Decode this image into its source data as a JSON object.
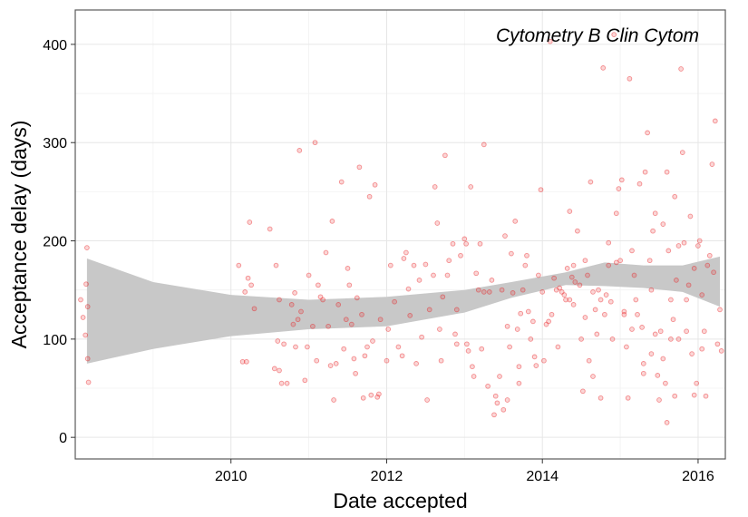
{
  "chart_data": {
    "type": "scatter",
    "annotation": "Cytometry B Clin Cytom",
    "xlabel": "Date accepted",
    "ylabel": "Acceptance delay (days)",
    "xlim": [
      2008.0,
      2016.35
    ],
    "ylim": [
      -22,
      435
    ],
    "x_ticks": [
      2010,
      2012,
      2014,
      2016
    ],
    "y_ticks": [
      0,
      100,
      200,
      300,
      400
    ],
    "grid": true,
    "point_color": "#e8191d",
    "band_color": "#c8c8c8",
    "points": [
      [
        2008.07,
        140
      ],
      [
        2008.1,
        122
      ],
      [
        2008.13,
        104
      ],
      [
        2008.14,
        156
      ],
      [
        2008.15,
        193
      ],
      [
        2008.16,
        133
      ],
      [
        2008.16,
        80
      ],
      [
        2008.17,
        56
      ],
      [
        2010.1,
        175
      ],
      [
        2010.15,
        77
      ],
      [
        2010.18,
        148
      ],
      [
        2010.2,
        77
      ],
      [
        2010.22,
        162
      ],
      [
        2010.24,
        219
      ],
      [
        2010.26,
        155
      ],
      [
        2010.3,
        131
      ],
      [
        2010.5,
        212
      ],
      [
        2010.56,
        70
      ],
      [
        2010.58,
        175
      ],
      [
        2010.6,
        98
      ],
      [
        2010.62,
        140
      ],
      [
        2010.62,
        68
      ],
      [
        2010.65,
        55
      ],
      [
        2010.68,
        95
      ],
      [
        2010.72,
        55
      ],
      [
        2010.78,
        135
      ],
      [
        2010.8,
        115
      ],
      [
        2010.82,
        147
      ],
      [
        2010.83,
        92
      ],
      [
        2010.86,
        120
      ],
      [
        2010.88,
        292
      ],
      [
        2010.9,
        128
      ],
      [
        2010.95,
        58
      ],
      [
        2010.98,
        92
      ],
      [
        2011.0,
        165
      ],
      [
        2011.05,
        113
      ],
      [
        2011.08,
        300
      ],
      [
        2011.1,
        78
      ],
      [
        2011.12,
        155
      ],
      [
        2011.15,
        143
      ],
      [
        2011.18,
        140
      ],
      [
        2011.22,
        188
      ],
      [
        2011.25,
        113
      ],
      [
        2011.28,
        73
      ],
      [
        2011.3,
        220
      ],
      [
        2011.32,
        38
      ],
      [
        2011.35,
        75
      ],
      [
        2011.38,
        135
      ],
      [
        2011.42,
        260
      ],
      [
        2011.45,
        90
      ],
      [
        2011.48,
        120
      ],
      [
        2011.5,
        172
      ],
      [
        2011.52,
        155
      ],
      [
        2011.55,
        115
      ],
      [
        2011.58,
        80
      ],
      [
        2011.6,
        65
      ],
      [
        2011.62,
        142
      ],
      [
        2011.65,
        275
      ],
      [
        2011.68,
        125
      ],
      [
        2011.7,
        40
      ],
      [
        2011.72,
        83
      ],
      [
        2011.75,
        92
      ],
      [
        2011.78,
        245
      ],
      [
        2011.8,
        43
      ],
      [
        2011.82,
        98
      ],
      [
        2011.85,
        257
      ],
      [
        2011.88,
        41
      ],
      [
        2011.9,
        44
      ],
      [
        2011.92,
        120
      ],
      [
        2012.0,
        78
      ],
      [
        2012.02,
        110
      ],
      [
        2012.05,
        175
      ],
      [
        2012.1,
        138
      ],
      [
        2012.15,
        92
      ],
      [
        2012.2,
        83
      ],
      [
        2012.22,
        182
      ],
      [
        2012.25,
        188
      ],
      [
        2012.28,
        151
      ],
      [
        2012.3,
        124
      ],
      [
        2012.35,
        175
      ],
      [
        2012.38,
        75
      ],
      [
        2012.42,
        160
      ],
      [
        2012.45,
        102
      ],
      [
        2012.5,
        176
      ],
      [
        2012.52,
        38
      ],
      [
        2012.55,
        130
      ],
      [
        2012.6,
        165
      ],
      [
        2012.62,
        255
      ],
      [
        2012.65,
        218
      ],
      [
        2012.68,
        110
      ],
      [
        2012.7,
        78
      ],
      [
        2012.72,
        143
      ],
      [
        2012.75,
        287
      ],
      [
        2012.78,
        165
      ],
      [
        2012.8,
        180
      ],
      [
        2012.85,
        197
      ],
      [
        2012.88,
        105
      ],
      [
        2012.9,
        130
      ],
      [
        2012.95,
        185
      ],
      [
        2013.0,
        202
      ],
      [
        2013.02,
        197
      ],
      [
        2013.03,
        95
      ],
      [
        2013.05,
        88
      ],
      [
        2013.08,
        255
      ],
      [
        2013.1,
        72
      ],
      [
        2013.12,
        62
      ],
      [
        2013.15,
        167
      ],
      [
        2013.18,
        150
      ],
      [
        2013.2,
        197
      ],
      [
        2013.22,
        90
      ],
      [
        2013.25,
        298
      ],
      [
        2013.3,
        52
      ],
      [
        2013.32,
        148
      ],
      [
        2013.35,
        160
      ],
      [
        2013.38,
        23
      ],
      [
        2013.4,
        42
      ],
      [
        2013.42,
        35
      ],
      [
        2013.45,
        62
      ],
      [
        2013.48,
        150
      ],
      [
        2013.5,
        28
      ],
      [
        2013.52,
        205
      ],
      [
        2013.55,
        38
      ],
      [
        2013.58,
        92
      ],
      [
        2013.6,
        187
      ],
      [
        2013.62,
        147
      ],
      [
        2013.65,
        220
      ],
      [
        2013.68,
        110
      ],
      [
        2013.7,
        55
      ],
      [
        2013.72,
        126
      ],
      [
        2013.75,
        150
      ],
      [
        2013.78,
        175
      ],
      [
        2013.8,
        185
      ],
      [
        2013.82,
        128
      ],
      [
        2013.85,
        100
      ],
      [
        2013.88,
        118
      ],
      [
        2013.9,
        82
      ],
      [
        2013.92,
        73
      ],
      [
        2013.95,
        165
      ],
      [
        2013.98,
        252
      ],
      [
        2014.0,
        148
      ],
      [
        2014.02,
        78
      ],
      [
        2014.05,
        115
      ],
      [
        2014.08,
        118
      ],
      [
        2014.1,
        403
      ],
      [
        2014.12,
        125
      ],
      [
        2014.15,
        162
      ],
      [
        2014.18,
        150
      ],
      [
        2014.2,
        92
      ],
      [
        2014.22,
        152
      ],
      [
        2014.25,
        148
      ],
      [
        2014.28,
        145
      ],
      [
        2014.3,
        140
      ],
      [
        2014.32,
        172
      ],
      [
        2014.35,
        230
      ],
      [
        2014.38,
        163
      ],
      [
        2014.4,
        175
      ],
      [
        2014.42,
        158
      ],
      [
        2014.45,
        210
      ],
      [
        2014.48,
        155
      ],
      [
        2014.5,
        100
      ],
      [
        2014.52,
        47
      ],
      [
        2014.55,
        180
      ],
      [
        2014.58,
        165
      ],
      [
        2014.6,
        78
      ],
      [
        2014.62,
        260
      ],
      [
        2014.65,
        62
      ],
      [
        2014.68,
        130
      ],
      [
        2014.7,
        105
      ],
      [
        2014.72,
        150
      ],
      [
        2014.75,
        40
      ],
      [
        2014.78,
        376
      ],
      [
        2014.8,
        125
      ],
      [
        2014.82,
        145
      ],
      [
        2014.85,
        198
      ],
      [
        2014.88,
        138
      ],
      [
        2014.9,
        100
      ],
      [
        2014.92,
        410
      ],
      [
        2014.95,
        228
      ],
      [
        2014.98,
        253
      ],
      [
        2015.0,
        180
      ],
      [
        2015.02,
        262
      ],
      [
        2015.05,
        125
      ],
      [
        2015.08,
        92
      ],
      [
        2015.1,
        40
      ],
      [
        2015.12,
        365
      ],
      [
        2015.15,
        190
      ],
      [
        2015.18,
        165
      ],
      [
        2015.2,
        140
      ],
      [
        2015.22,
        125
      ],
      [
        2015.25,
        258
      ],
      [
        2015.28,
        112
      ],
      [
        2015.3,
        75
      ],
      [
        2015.32,
        270
      ],
      [
        2015.35,
        310
      ],
      [
        2015.38,
        180
      ],
      [
        2015.4,
        150
      ],
      [
        2015.42,
        210
      ],
      [
        2015.45,
        105
      ],
      [
        2015.48,
        63
      ],
      [
        2015.5,
        38
      ],
      [
        2015.52,
        108
      ],
      [
        2015.55,
        217
      ],
      [
        2015.58,
        55
      ],
      [
        2015.6,
        15
      ],
      [
        2015.62,
        190
      ],
      [
        2015.65,
        140
      ],
      [
        2015.68,
        120
      ],
      [
        2015.7,
        42
      ],
      [
        2015.72,
        160
      ],
      [
        2015.75,
        100
      ],
      [
        2015.78,
        375
      ],
      [
        2015.8,
        290
      ],
      [
        2015.82,
        198
      ],
      [
        2015.85,
        140
      ],
      [
        2015.88,
        155
      ],
      [
        2015.9,
        225
      ],
      [
        2015.92,
        85
      ],
      [
        2015.95,
        172
      ],
      [
        2015.98,
        55
      ],
      [
        2016.0,
        195
      ],
      [
        2016.02,
        200
      ],
      [
        2016.05,
        145
      ],
      [
        2016.08,
        108
      ],
      [
        2016.1,
        42
      ],
      [
        2016.12,
        175
      ],
      [
        2016.15,
        185
      ],
      [
        2016.18,
        278
      ],
      [
        2016.2,
        168
      ],
      [
        2016.22,
        322
      ],
      [
        2016.25,
        95
      ],
      [
        2016.28,
        130
      ],
      [
        2016.3,
        88
      ],
      [
        2014.35,
        140
      ],
      [
        2014.75,
        140
      ],
      [
        2015.05,
        128
      ],
      [
        2013.55,
        113
      ],
      [
        2014.55,
        122
      ],
      [
        2013.25,
        148
      ],
      [
        2012.9,
        95
      ],
      [
        2013.7,
        72
      ],
      [
        2015.55,
        80
      ],
      [
        2015.65,
        100
      ],
      [
        2015.4,
        85
      ],
      [
        2015.3,
        65
      ],
      [
        2015.85,
        108
      ],
      [
        2016.05,
        90
      ],
      [
        2015.95,
        43
      ],
      [
        2015.75,
        195
      ],
      [
        2015.7,
        245
      ],
      [
        2015.6,
        270
      ],
      [
        2015.45,
        228
      ],
      [
        2014.95,
        178
      ],
      [
        2015.15,
        110
      ],
      [
        2014.85,
        175
      ],
      [
        2014.65,
        148
      ],
      [
        2014.4,
        135
      ]
    ],
    "smooth_band": {
      "x": [
        2008.15,
        2009.0,
        2010.0,
        2011.0,
        2012.0,
        2013.0,
        2013.6,
        2014.3,
        2014.8,
        2015.3,
        2015.8,
        2016.28
      ],
      "lower": [
        75,
        90,
        103,
        110,
        113,
        127,
        142,
        155,
        154,
        152,
        148,
        133
      ],
      "upper": [
        182,
        158,
        145,
        140,
        143,
        150,
        158,
        168,
        178,
        175,
        175,
        184
      ]
    }
  }
}
